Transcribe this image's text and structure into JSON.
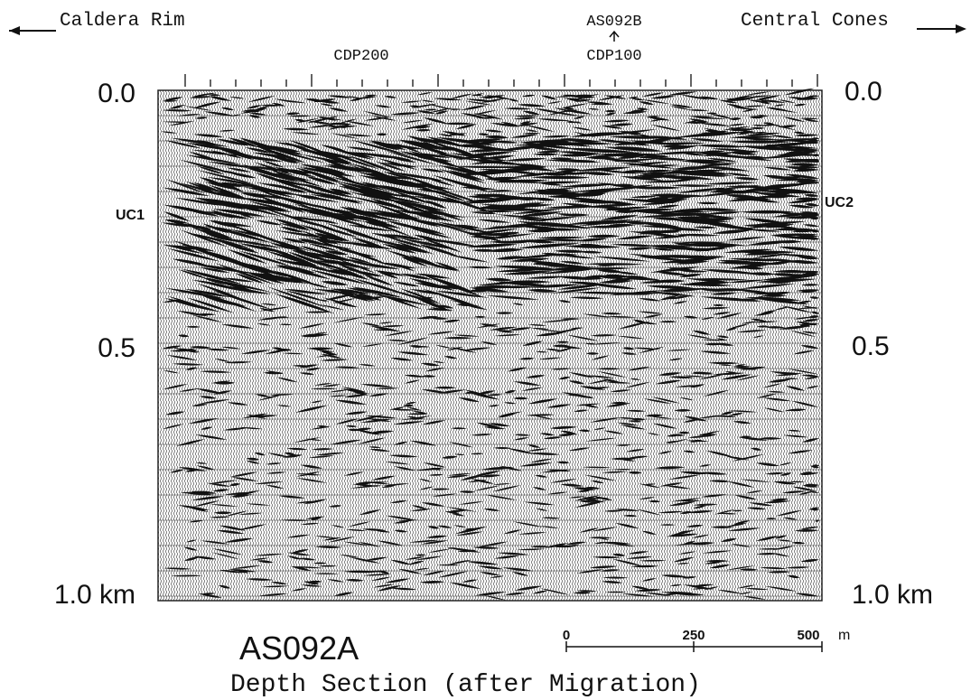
{
  "header": {
    "left": "Caldera Rim",
    "right": "Central Cones",
    "well": "AS092B",
    "cdp_left": "CDP200",
    "cdp_right": "CDP100"
  },
  "depth_axis": {
    "left": [
      "0.0",
      "0.5",
      "1.0 km"
    ],
    "right": [
      "0.0",
      "0.5",
      "1.0 km"
    ]
  },
  "markers": {
    "left": "UC1",
    "right": "UC2"
  },
  "scale_bar": {
    "labels": [
      "0",
      "250",
      "500"
    ],
    "unit": "m"
  },
  "footer": {
    "title": "AS092A",
    "subtitle": "Depth Section (after Migration)"
  }
}
